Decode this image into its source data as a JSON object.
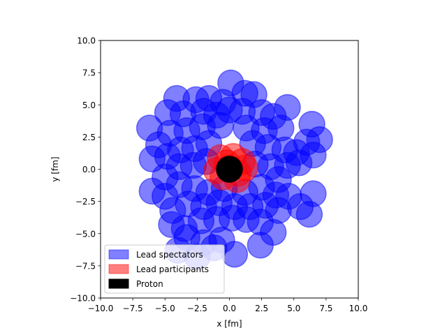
{
  "chart_data": {
    "type": "scatter",
    "title": "",
    "xlabel": "x [fm]",
    "ylabel": "y [fm]",
    "xlim": [
      -10,
      10
    ],
    "ylim": [
      -10,
      10
    ],
    "xticks": [
      "−10.0",
      "−7.5",
      "−5.0",
      "−2.5",
      "0.0",
      "2.5",
      "5.0",
      "7.5",
      "10.0"
    ],
    "yticks": [
      "−10.0",
      "−7.5",
      "−5.0",
      "−2.5",
      "0.0",
      "2.5",
      "5.0",
      "7.5",
      "10.0"
    ],
    "grid": false,
    "legend_position": "lower-left",
    "nucleon_radius": 1.0,
    "series": [
      {
        "name": "Lead spectators",
        "color": "#0000ff",
        "alpha": 0.5,
        "points": [
          [
            0.1,
            6.7
          ],
          [
            1.9,
            5.8
          ],
          [
            1.2,
            5.9
          ],
          [
            -4.1,
            5.5
          ],
          [
            -2.6,
            5.4
          ],
          [
            -1.6,
            5.5
          ],
          [
            -0.5,
            5.2
          ],
          [
            4.5,
            4.8
          ],
          [
            -4.8,
            4.4
          ],
          [
            -3.6,
            4.3
          ],
          [
            -2.0,
            4.5
          ],
          [
            -1.0,
            4.2
          ],
          [
            0.0,
            4.6
          ],
          [
            1.0,
            4.5
          ],
          [
            2.5,
            4.4
          ],
          [
            3.4,
            4.1
          ],
          [
            -6.2,
            3.2
          ],
          [
            -5.5,
            1.9
          ],
          [
            -4.6,
            2.8
          ],
          [
            -3.3,
            3.0
          ],
          [
            -2.1,
            3.3
          ],
          [
            -0.7,
            3.4
          ],
          [
            1.3,
            3.2
          ],
          [
            2.7,
            3.0
          ],
          [
            4.0,
            3.2
          ],
          [
            6.4,
            3.5
          ],
          [
            7.0,
            2.3
          ],
          [
            6.0,
            2.1
          ],
          [
            5.2,
            1.3
          ],
          [
            -6.0,
            0.8
          ],
          [
            -4.8,
            1.0
          ],
          [
            -3.8,
            1.5
          ],
          [
            -2.7,
            1.6
          ],
          [
            -1.6,
            2.0
          ],
          [
            1.8,
            2.0
          ],
          [
            3.0,
            1.7
          ],
          [
            4.3,
            1.5
          ],
          [
            6.5,
            1.1
          ],
          [
            5.4,
            0.5
          ],
          [
            4.5,
            0.3
          ],
          [
            -5.0,
            -0.6
          ],
          [
            -3.9,
            0.2
          ],
          [
            -2.8,
            0.3
          ],
          [
            -1.8,
            0.6
          ],
          [
            2.0,
            0.4
          ],
          [
            3.2,
            0.2
          ],
          [
            3.8,
            -0.8
          ],
          [
            -6.0,
            -1.7
          ],
          [
            -5.0,
            -2.1
          ],
          [
            -3.9,
            -1.2
          ],
          [
            -2.7,
            -1.5
          ],
          [
            -1.6,
            -1.8
          ],
          [
            -0.4,
            -1.5
          ],
          [
            1.2,
            -1.8
          ],
          [
            2.5,
            -1.4
          ],
          [
            3.6,
            -2.0
          ],
          [
            4.6,
            -2.1
          ],
          [
            6.5,
            -1.9
          ],
          [
            5.5,
            -2.9
          ],
          [
            6.2,
            -3.5
          ],
          [
            -4.4,
            -3.2
          ],
          [
            -3.2,
            -2.7
          ],
          [
            -2.0,
            -2.9
          ],
          [
            -0.8,
            -2.6
          ],
          [
            0.4,
            -2.9
          ],
          [
            1.6,
            -2.9
          ],
          [
            2.8,
            -2.8
          ],
          [
            3.8,
            -3.2
          ],
          [
            -4.5,
            -4.3
          ],
          [
            -3.5,
            -4.6
          ],
          [
            -2.2,
            -4.0
          ],
          [
            -1.0,
            -3.9
          ],
          [
            0.2,
            -3.8
          ],
          [
            1.3,
            -3.9
          ],
          [
            2.4,
            -4.1
          ],
          [
            3.4,
            -4.9
          ],
          [
            -3.3,
            -5.3
          ],
          [
            -2.0,
            -5.7
          ],
          [
            -0.6,
            -5.5
          ],
          [
            -4.0,
            -6.3
          ],
          [
            -1.2,
            -6.1
          ],
          [
            0.4,
            -6.6
          ],
          [
            2.4,
            -5.9
          ],
          [
            -2.5,
            -6.8
          ]
        ]
      },
      {
        "name": "Lead participants",
        "color": "#ff0000",
        "alpha": 0.5,
        "points": [
          [
            -0.7,
            0.9
          ],
          [
            0.3,
            1.0
          ],
          [
            1.0,
            0.6
          ],
          [
            -1.0,
            -0.1
          ],
          [
            0.0,
            0.1
          ],
          [
            0.7,
            -0.3
          ],
          [
            -0.5,
            -0.6
          ],
          [
            0.6,
            -0.8
          ],
          [
            1.2,
            0.1
          ],
          [
            -0.2,
            0.5
          ]
        ]
      },
      {
        "name": "Proton",
        "color": "#000000",
        "alpha": 1.0,
        "points": [
          [
            0.0,
            0.0
          ]
        ]
      }
    ]
  }
}
